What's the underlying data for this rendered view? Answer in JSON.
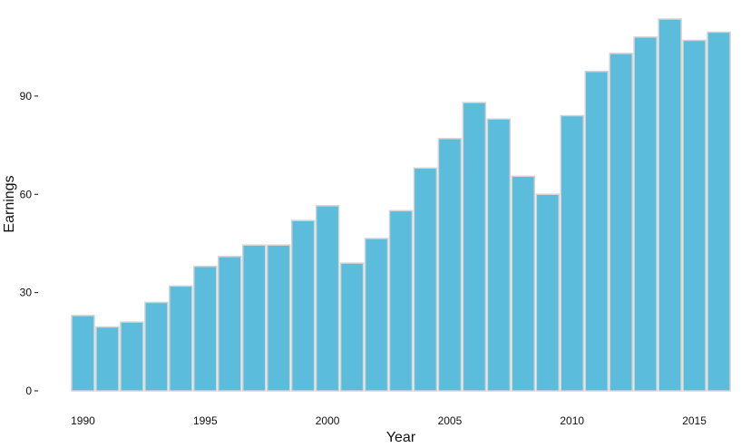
{
  "chart_data": {
    "type": "bar",
    "title": "",
    "xlabel": "Year",
    "ylabel": "Earnings",
    "x": [
      1990,
      1991,
      1992,
      1993,
      1994,
      1995,
      1996,
      1997,
      1998,
      1999,
      2000,
      2001,
      2002,
      2003,
      2004,
      2005,
      2006,
      2007,
      2008,
      2009,
      2010,
      2011,
      2012,
      2013,
      2014,
      2015,
      2016
    ],
    "values": [
      23,
      19.5,
      21,
      27,
      32,
      38,
      41,
      44.5,
      44.5,
      52,
      56.5,
      39,
      46.5,
      55,
      68,
      77,
      88,
      83,
      65.5,
      60,
      84,
      97.5,
      103,
      108,
      113.5,
      107,
      109.5
    ],
    "x_ticks": [
      "1990",
      "1995",
      "2000",
      "2005",
      "2010",
      "2015"
    ],
    "y_ticks": [
      "0",
      "30",
      "60",
      "90"
    ],
    "ylim": [
      0,
      113.5
    ],
    "grid": false,
    "legend": "none",
    "colors": {
      "bar_fill": "#5bbcdc",
      "bar_stroke": "#d3d3d3",
      "tick": "#111111"
    }
  }
}
